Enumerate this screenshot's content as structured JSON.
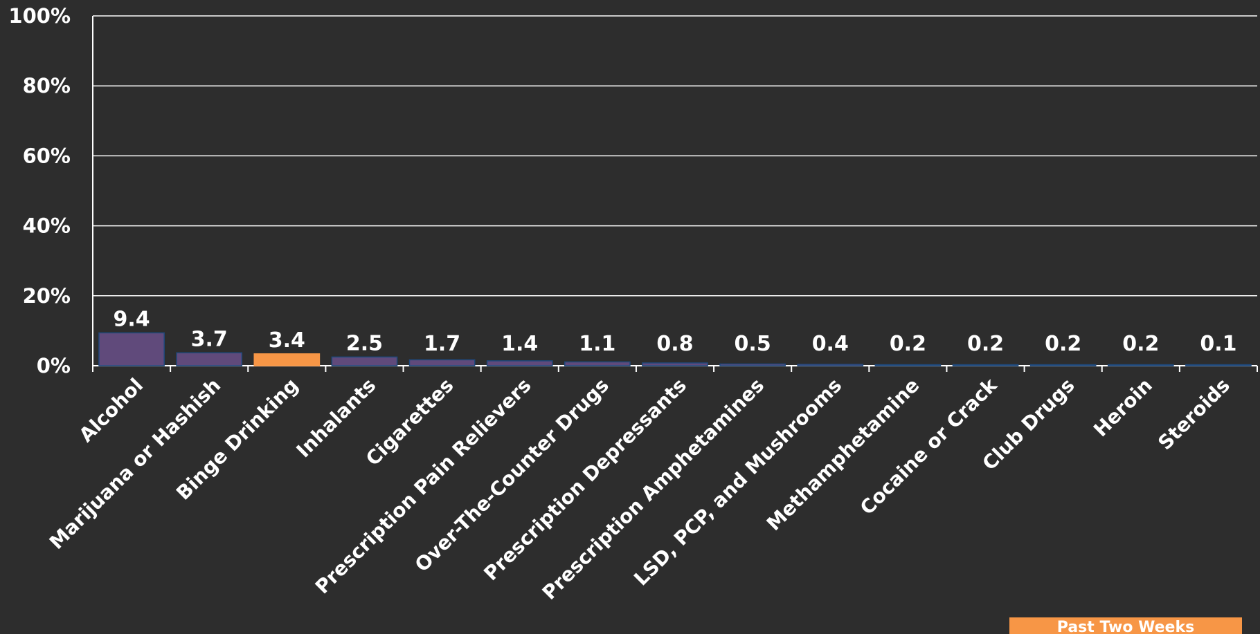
{
  "chart_data": {
    "type": "bar",
    "categories": [
      "Alcohol",
      "Marijuana or Hashish",
      "Binge Drinking",
      "Inhalants",
      "Cigarettes",
      "Prescription Pain Relievers",
      "Over-The-Counter Drugs",
      "Prescription Depressants",
      "Prescription Amphetamines",
      "LSD, PCP, and Mushrooms",
      "Methamphetamine",
      "Cocaine or Crack",
      "Club Drugs",
      "Heroin",
      "Steroids"
    ],
    "values": [
      9.4,
      3.7,
      3.4,
      2.5,
      1.7,
      1.4,
      1.1,
      0.8,
      0.5,
      0.4,
      0.2,
      0.2,
      0.2,
      0.2,
      0.1
    ],
    "data_labels": [
      "9.4",
      "3.7",
      "3.4",
      "2.5",
      "1.7",
      "1.4",
      "1.1",
      "0.8",
      "0.5",
      "0.4",
      "0.2",
      "0.2",
      "0.2",
      "0.2",
      "0.1"
    ],
    "highlighted_category": "Binge Drinking",
    "yticks": [
      "0%",
      "20%",
      "40%",
      "60%",
      "80%",
      "100%"
    ],
    "ylim": [
      0,
      100
    ],
    "grid": true,
    "colors": {
      "bar": "#604a7b",
      "bar_edge": "#1f497d",
      "highlight": "#f79646",
      "grid": "#ffffff",
      "background": "#2d2d2d"
    },
    "legend": {
      "position": "bottom-right",
      "text": "Past Two Weeks"
    }
  }
}
